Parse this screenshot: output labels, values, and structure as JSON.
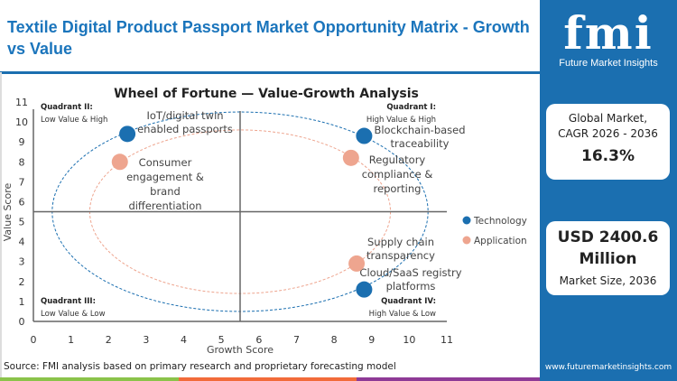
{
  "header": {
    "title": "Textile Digital Product Passport Market Opportunity Matrix - Growth vs Value"
  },
  "brand": {
    "logo_text": "fmi",
    "logo_subtitle": "Future Market Insights",
    "url": "www.futuremarketinsights.com"
  },
  "stats": {
    "cagr_label_1": "Global Market,",
    "cagr_label_2": "CAGR 2026 - 2036",
    "cagr_value": "16.3%",
    "size_value_1": "USD 2400.6",
    "size_value_2": "Million",
    "size_label": "Market Size, 2036"
  },
  "source": "Source: FMI analysis based on primary research and proprietary forecasting model",
  "colors": {
    "technology": "#1b6fb0",
    "application": "#eea58f",
    "accent": "#1b75bc",
    "panel": "#1b6fb0",
    "stripe": [
      "#8bc34a",
      "#f26b3a",
      "#8e3a96"
    ]
  },
  "chart_data": {
    "type": "scatter",
    "title": "Wheel of Fortune — Value-Growth Analysis",
    "xlabel": "Growth Score",
    "ylabel": "Value Score",
    "xlim": [
      0,
      11
    ],
    "ylim": [
      0,
      11
    ],
    "xticks": [
      "0",
      "1",
      "2",
      "3",
      "4",
      "5",
      "6",
      "7",
      "8",
      "9",
      "10",
      "11"
    ],
    "yticks": [
      "0",
      "1",
      "2",
      "3",
      "4",
      "5",
      "6",
      "7",
      "8",
      "9",
      "10",
      "11"
    ],
    "grid": false,
    "legend_position": "right",
    "quadrant_divider": {
      "x": 5.5,
      "y": 5.5
    },
    "quadrants": [
      {
        "name": "Quadrant II:",
        "desc": "Low Value & High",
        "pos": "top-left"
      },
      {
        "name": "Quadrant I:",
        "desc": "High Value & High",
        "pos": "top-right"
      },
      {
        "name": "Quadrant III:",
        "desc": "Low Value & Low",
        "pos": "bottom-left"
      },
      {
        "name": "Quadrant IV:",
        "desc": "High Value & Low",
        "pos": "bottom-right"
      }
    ],
    "series": [
      {
        "name": "Technology",
        "color": "#1b6fb0",
        "ring": {
          "cx": 5.5,
          "cy": 5.5,
          "rx": 5,
          "ry": 5
        },
        "points": [
          {
            "label": [
              "IoT/digital twin",
              "enabled passports"
            ],
            "x": 2.5,
            "y": 9.4
          },
          {
            "label": [
              "Blockchain-based",
              "traceability"
            ],
            "x": 8.8,
            "y": 9.3
          },
          {
            "label": [
              "Cloud/SaaS registry",
              "platforms"
            ],
            "x": 8.8,
            "y": 1.6
          }
        ]
      },
      {
        "name": "Application",
        "color": "#eea58f",
        "ring": {
          "cx": 5.5,
          "cy": 5.5,
          "rx": 4,
          "ry": 4.1
        },
        "points": [
          {
            "label": [
              "Consumer",
              "engagement &",
              "brand",
              "differentiation"
            ],
            "x": 2.3,
            "y": 8.0
          },
          {
            "label": [
              "Regulatory",
              "compliance &",
              "reporting"
            ],
            "x": 8.45,
            "y": 8.2
          },
          {
            "label": [
              "Supply chain",
              "transparency"
            ],
            "x": 8.6,
            "y": 2.9
          }
        ]
      }
    ]
  }
}
